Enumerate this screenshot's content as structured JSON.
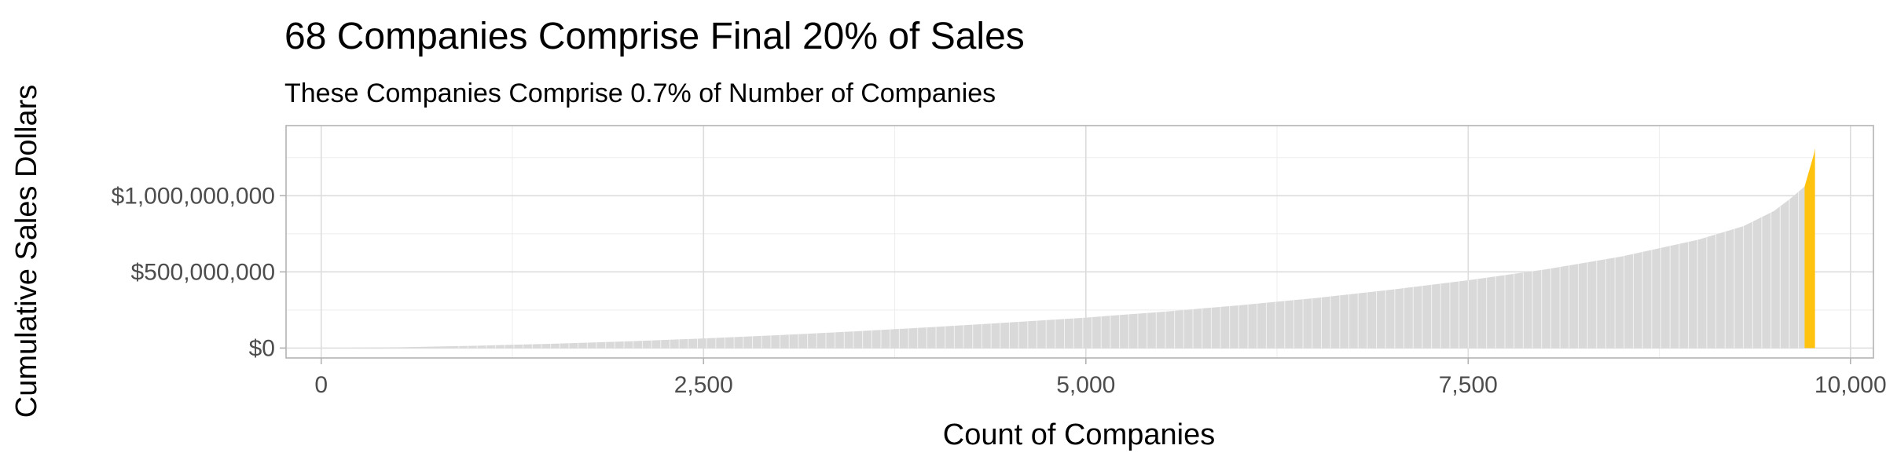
{
  "chart_data": {
    "type": "area",
    "title": "68 Companies Comprise Final 20% of Sales",
    "subtitle": "These Companies Comprise 0.7% of Number of Companies",
    "xlabel": "Count of Companies",
    "ylabel": "Cumulative Sales Dollars",
    "xlim": [
      -230,
      10150
    ],
    "ylim": [
      -65000000,
      1460000000
    ],
    "x_ticks": [
      0,
      2500,
      5000,
      7500,
      10000
    ],
    "x_tick_labels": [
      "0",
      "2,500",
      "5,000",
      "7,500",
      "10,000"
    ],
    "y_ticks": [
      0,
      500000000,
      1000000000
    ],
    "y_tick_labels": [
      "$0",
      "$500,000,000",
      "$1,000,000,000"
    ],
    "grid": true,
    "legend": "none",
    "series": [
      {
        "color": "#d9d9d9",
        "x": [
          0,
          500,
          1000,
          1500,
          2000,
          2500,
          3000,
          3500,
          4000,
          4500,
          5000,
          5500,
          6000,
          6500,
          7000,
          7500,
          8000,
          8500,
          9000,
          9300,
          9500,
          9600,
          9700
        ],
        "y": [
          0,
          5000000,
          15000000,
          28000000,
          44000000,
          63000000,
          85000000,
          110000000,
          138000000,
          168000000,
          200000000,
          238000000,
          280000000,
          328000000,
          383000000,
          445000000,
          515000000,
          600000000,
          710000000,
          800000000,
          900000000,
          975000000,
          1060000000
        ]
      },
      {
        "color": "#ffc20e",
        "x": [
          9700,
          9720,
          9740,
          9760,
          9768
        ],
        "y": [
          1060000000,
          1130000000,
          1200000000,
          1270000000,
          1310000000
        ]
      }
    ]
  }
}
